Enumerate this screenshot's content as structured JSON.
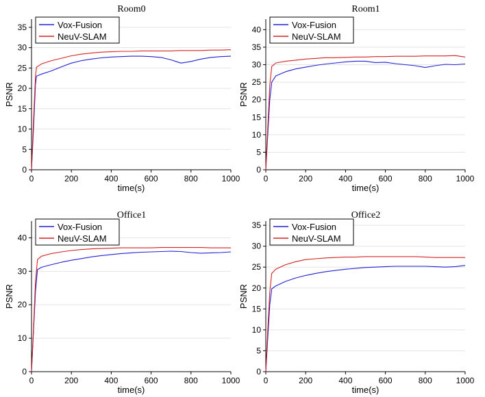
{
  "colors": {
    "vox": "#1f1fd6",
    "neuv": "#d42020",
    "grid": "#e3e3e3"
  },
  "chart_data": [
    {
      "type": "line",
      "title": "Room0",
      "xlabel": "time(s)",
      "ylabel": "PSNR",
      "xlim": [
        0,
        1000
      ],
      "ylim": [
        0,
        37
      ],
      "xticks": [
        "0",
        "200",
        "400",
        "600",
        "800",
        "1000"
      ],
      "yticks": [
        "0",
        "5",
        "10",
        "15",
        "20",
        "25",
        "30",
        "35"
      ],
      "ytick_values": [
        0,
        5,
        10,
        15,
        20,
        25,
        30,
        35
      ],
      "grid": true,
      "legend_position": "top-left",
      "series": [
        {
          "name": "Vox-Fusion",
          "color": "#1f1fd6",
          "x": [
            0,
            10,
            20,
            25,
            50,
            100,
            150,
            200,
            250,
            300,
            350,
            400,
            450,
            500,
            550,
            600,
            650,
            700,
            750,
            800,
            850,
            900,
            950,
            1000
          ],
          "y": [
            0,
            10,
            21,
            23,
            23.5,
            24.3,
            25.3,
            26.2,
            26.8,
            27.2,
            27.5,
            27.7,
            27.8,
            27.9,
            27.9,
            27.8,
            27.6,
            27.0,
            26.2,
            26.6,
            27.2,
            27.6,
            27.8,
            27.9
          ]
        },
        {
          "name": "NeuV-SLAM",
          "color": "#d42020",
          "x": [
            0,
            10,
            20,
            25,
            50,
            100,
            150,
            200,
            250,
            300,
            350,
            400,
            450,
            500,
            550,
            600,
            650,
            700,
            750,
            800,
            850,
            900,
            950,
            1000
          ],
          "y": [
            0,
            12,
            23,
            25.2,
            26.0,
            26.8,
            27.4,
            28.0,
            28.4,
            28.7,
            28.9,
            29.0,
            29.1,
            29.1,
            29.2,
            29.2,
            29.2,
            29.2,
            29.3,
            29.3,
            29.3,
            29.4,
            29.4,
            29.5
          ]
        }
      ]
    },
    {
      "type": "line",
      "title": "Room1",
      "xlabel": "time(s)",
      "ylabel": "PSNR",
      "xlim": [
        0,
        1000
      ],
      "ylim": [
        0,
        43
      ],
      "xticks": [
        "0",
        "200",
        "400",
        "600",
        "800",
        "1000"
      ],
      "yticks": [
        "0",
        "5",
        "10",
        "15",
        "20",
        "25",
        "30",
        "35",
        "40"
      ],
      "ytick_values": [
        0,
        5,
        10,
        15,
        20,
        25,
        30,
        35,
        40
      ],
      "grid": true,
      "legend_position": "top-left",
      "series": [
        {
          "name": "Vox-Fusion",
          "color": "#1f1fd6",
          "x": [
            0,
            10,
            20,
            30,
            50,
            100,
            150,
            200,
            250,
            300,
            350,
            400,
            450,
            500,
            550,
            600,
            650,
            700,
            750,
            800,
            850,
            900,
            950,
            1000
          ],
          "y": [
            0,
            10,
            20,
            25,
            26.8,
            28.0,
            28.8,
            29.3,
            29.8,
            30.2,
            30.5,
            30.8,
            31.0,
            31.0,
            30.6,
            30.7,
            30.3,
            30.0,
            29.7,
            29.2,
            29.7,
            30.1,
            30.0,
            30.2
          ]
        },
        {
          "name": "NeuV-SLAM",
          "color": "#d42020",
          "x": [
            0,
            10,
            20,
            30,
            50,
            100,
            150,
            200,
            250,
            300,
            350,
            400,
            450,
            500,
            550,
            600,
            650,
            700,
            750,
            800,
            850,
            900,
            950,
            1000
          ],
          "y": [
            0,
            12,
            24,
            29.5,
            30.5,
            31.0,
            31.3,
            31.6,
            31.8,
            32.0,
            32.0,
            32.1,
            32.2,
            32.2,
            32.3,
            32.3,
            32.4,
            32.4,
            32.4,
            32.5,
            32.5,
            32.5,
            32.6,
            32.2
          ]
        }
      ]
    },
    {
      "type": "line",
      "title": "Office1",
      "xlabel": "time(s)",
      "ylabel": "PSNR",
      "xlim": [
        0,
        1000
      ],
      "ylim": [
        0,
        45
      ],
      "xticks": [
        "0",
        "200",
        "400",
        "600",
        "800",
        "1000"
      ],
      "yticks": [
        "0",
        "10",
        "20",
        "30",
        "40"
      ],
      "ytick_values": [
        0,
        10,
        20,
        30,
        40
      ],
      "grid": true,
      "legend_position": "top-left",
      "series": [
        {
          "name": "Vox-Fusion",
          "color": "#1f1fd6",
          "x": [
            0,
            10,
            20,
            30,
            50,
            100,
            150,
            200,
            250,
            300,
            350,
            400,
            450,
            500,
            550,
            600,
            650,
            700,
            750,
            800,
            850,
            900,
            950,
            1000
          ],
          "y": [
            0,
            12,
            24,
            30.5,
            31.2,
            32.0,
            32.7,
            33.3,
            33.8,
            34.3,
            34.7,
            35.0,
            35.3,
            35.5,
            35.7,
            35.8,
            35.9,
            36.0,
            35.9,
            35.6,
            35.4,
            35.5,
            35.6,
            35.8
          ]
        },
        {
          "name": "NeuV-SLAM",
          "color": "#d42020",
          "x": [
            0,
            10,
            20,
            30,
            50,
            100,
            150,
            200,
            250,
            300,
            350,
            400,
            450,
            500,
            550,
            600,
            650,
            700,
            750,
            800,
            850,
            900,
            950,
            1000
          ],
          "y": [
            0,
            13,
            27,
            33.5,
            34.5,
            35.3,
            35.8,
            36.2,
            36.5,
            36.7,
            36.8,
            36.9,
            37.0,
            37.0,
            37.0,
            37.0,
            37.1,
            37.1,
            37.1,
            37.1,
            37.1,
            37.0,
            37.0,
            37.0
          ]
        }
      ]
    },
    {
      "type": "line",
      "title": "Office2",
      "xlabel": "time(s)",
      "ylabel": "PSNR",
      "xlim": [
        0,
        1000
      ],
      "ylim": [
        0,
        36
      ],
      "xticks": [
        "0",
        "200",
        "400",
        "600",
        "800",
        "1000"
      ],
      "yticks": [
        "0",
        "5",
        "10",
        "15",
        "20",
        "25",
        "30",
        "35"
      ],
      "ytick_values": [
        0,
        5,
        10,
        15,
        20,
        25,
        30,
        35
      ],
      "grid": true,
      "legend_position": "top-left",
      "series": [
        {
          "name": "Vox-Fusion",
          "color": "#1f1fd6",
          "x": [
            0,
            10,
            20,
            30,
            50,
            100,
            150,
            200,
            250,
            300,
            350,
            400,
            450,
            500,
            550,
            600,
            650,
            700,
            750,
            800,
            850,
            900,
            950,
            1000
          ],
          "y": [
            0,
            8,
            16,
            19.8,
            20.5,
            21.6,
            22.4,
            23.0,
            23.5,
            23.9,
            24.2,
            24.5,
            24.7,
            24.9,
            25.0,
            25.1,
            25.2,
            25.2,
            25.2,
            25.2,
            25.1,
            25.0,
            25.1,
            25.4
          ]
        },
        {
          "name": "NeuV-SLAM",
          "color": "#d42020",
          "x": [
            0,
            10,
            20,
            30,
            50,
            100,
            150,
            200,
            250,
            300,
            350,
            400,
            450,
            500,
            550,
            600,
            650,
            700,
            750,
            800,
            850,
            900,
            950,
            1000
          ],
          "y": [
            0,
            10,
            19,
            23.5,
            24.5,
            25.6,
            26.3,
            26.8,
            27.0,
            27.2,
            27.3,
            27.4,
            27.4,
            27.5,
            27.5,
            27.5,
            27.5,
            27.5,
            27.5,
            27.4,
            27.3,
            27.3,
            27.3,
            27.3
          ]
        }
      ]
    }
  ]
}
